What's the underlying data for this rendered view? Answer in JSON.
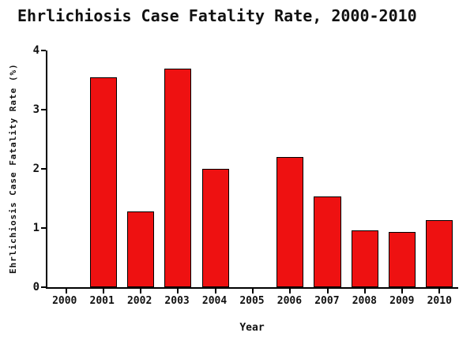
{
  "chart_data": {
    "type": "bar",
    "title": "Ehrlichiosis Case Fatality Rate, 2000-2010",
    "xlabel": "Year",
    "ylabel": "Ehrlichiosis Case Fatality Rate (%)",
    "categories": [
      "2000",
      "2001",
      "2002",
      "2003",
      "2004",
      "2005",
      "2006",
      "2007",
      "2008",
      "2009",
      "2010"
    ],
    "values": [
      null,
      3.55,
      1.28,
      3.7,
      2.0,
      null,
      2.2,
      1.54,
      0.96,
      0.94,
      1.14
    ],
    "ylim": [
      0,
      4
    ],
    "yticks": [
      0,
      1,
      2,
      3,
      4
    ],
    "bar_color": "#ee1111",
    "bar_border_color": "#000000",
    "axis_color": "#000000",
    "grid": "off",
    "legend": "none"
  }
}
